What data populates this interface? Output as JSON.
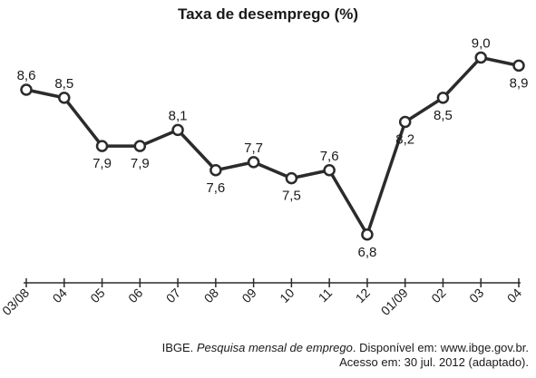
{
  "chart_data": {
    "type": "line",
    "title": "Taxa de desemprego (%)",
    "xlabel": "",
    "ylabel": "",
    "categories": [
      "03/08",
      "04",
      "05",
      "06",
      "07",
      "08",
      "09",
      "10",
      "11",
      "12",
      "01/09",
      "02",
      "03",
      "04"
    ],
    "series": [
      {
        "values": [
          8.6,
          8.5,
          7.9,
          7.9,
          8.1,
          7.6,
          7.7,
          7.5,
          7.6,
          6.8,
          8.2,
          8.5,
          9.0,
          8.9
        ],
        "labels": [
          "8,6",
          "8,5",
          "7,9",
          "7,9",
          "8,1",
          "7,6",
          "7,7",
          "7,5",
          "7,6",
          "6,8",
          "8,2",
          "8,5",
          "9,0",
          "8,9"
        ],
        "label_side": [
          "above",
          "above",
          "below",
          "below",
          "above",
          "below",
          "above",
          "below",
          "above",
          "below",
          "below",
          "below",
          "above",
          "below"
        ]
      }
    ],
    "ylim": [
      6.2,
      9.4
    ],
    "grid": false,
    "legend": "none",
    "line_color": "#2b2b2b",
    "marker_fill": "#ffffff"
  },
  "source": {
    "line1_prefix": "IBGE. ",
    "line1_italic": "Pesquisa mensal de emprego",
    "line1_suffix": ". Disponível em: www.ibge.gov.br.",
    "line2": "Acesso em: 30 jul. 2012 (adaptado)."
  }
}
